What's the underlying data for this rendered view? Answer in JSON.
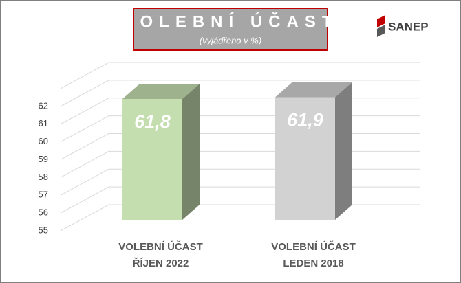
{
  "chart_data": {
    "type": "bar3d",
    "title": "VOLEBNÍ ÚČAST",
    "subtitle": "(vyjádřeno v %)",
    "logo": "SANEP",
    "categories": [
      [
        "VOLEBNÍ ÚČAST",
        "ŘÍJEN 2022"
      ],
      [
        "VOLEBNÍ ÚČAST",
        "LEDEN 2018"
      ]
    ],
    "values": [
      61.8,
      61.9
    ],
    "value_labels": [
      "61,8",
      "61,9"
    ],
    "colors": [
      "#c5deb0",
      "#d2d2d2"
    ],
    "ylim": [
      55,
      63
    ],
    "yticks": [
      55,
      56,
      57,
      58,
      59,
      60,
      61,
      62
    ],
    "grid": true
  }
}
